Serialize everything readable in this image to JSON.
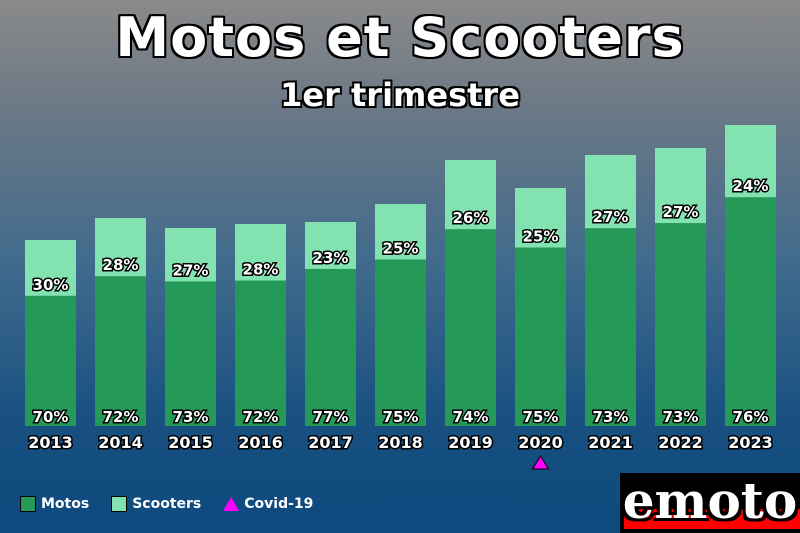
{
  "title": "Motos et Scooters",
  "subtitle": "1er trimestre",
  "colors": {
    "motos": "#259a58",
    "scooters": "#83e3b0",
    "covid": "#ff00ff"
  },
  "legend": {
    "motos": "Motos",
    "scooters": "Scooters",
    "covid": "Covid-19"
  },
  "logo": {
    "text": "emoto"
  },
  "chart_data": {
    "type": "bar",
    "stacked": true,
    "categories": [
      "2013",
      "2014",
      "2015",
      "2016",
      "2017",
      "2018",
      "2019",
      "2020",
      "2021",
      "2022",
      "2023"
    ],
    "series": [
      {
        "name": "Motos",
        "values": [
          70,
          72,
          73,
          72,
          77,
          75,
          74,
          75,
          73,
          73,
          76
        ]
      },
      {
        "name": "Scooters",
        "values": [
          30,
          28,
          27,
          28,
          23,
          25,
          26,
          25,
          27,
          27,
          24
        ]
      }
    ],
    "total_relative": [
      186,
      208,
      198,
      202,
      204,
      222,
      266,
      238,
      271,
      278,
      301
    ],
    "value_format": "percent",
    "marker": {
      "category": "2020",
      "label": "Covid-19",
      "shape": "triangle"
    },
    "legend_position": "bottom-left",
    "grid": false
  }
}
